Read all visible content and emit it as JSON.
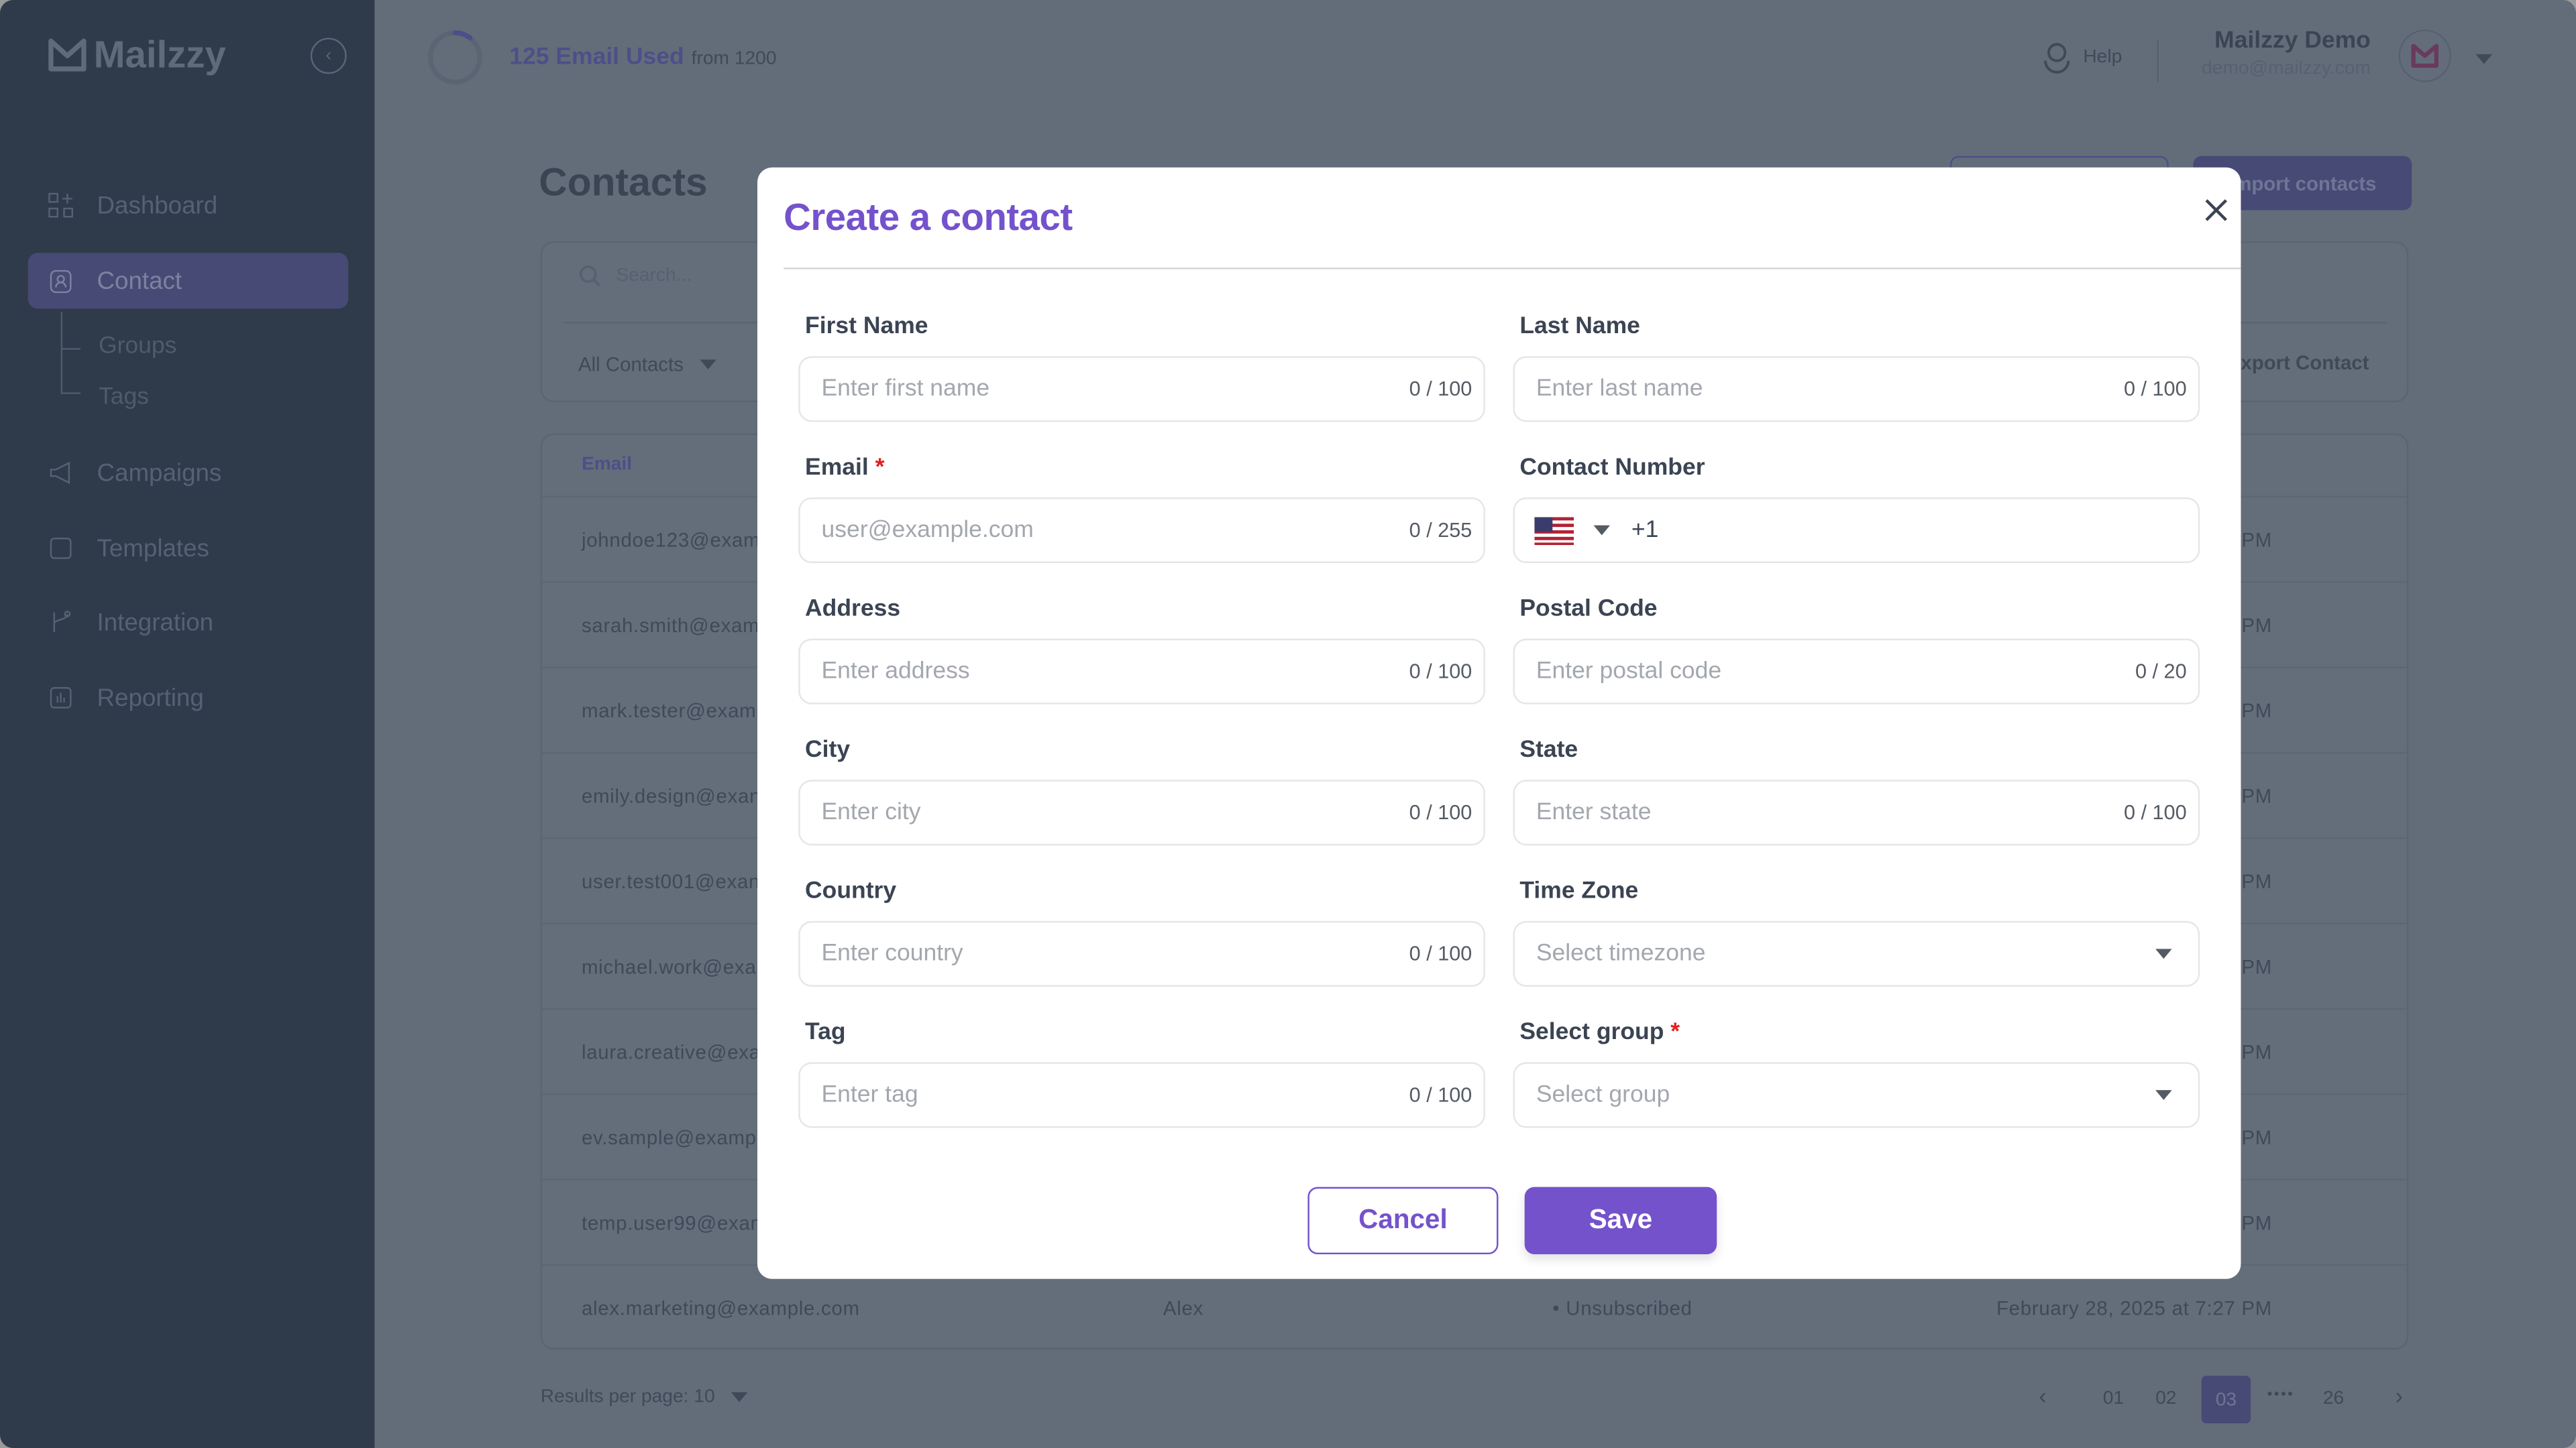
{
  "app": {
    "logo_text": "Mailzzy"
  },
  "colors": {
    "accent": "#7452cc",
    "sidebar": "#2f3a4a",
    "overlay": "#636d7a",
    "required": "#e01f1f"
  },
  "sidebar": {
    "items": [
      {
        "label": "Dashboard",
        "icon": "grid-plus-icon"
      },
      {
        "label": "Contact",
        "icon": "contact-badge-icon",
        "active": true
      },
      {
        "label": "Campaigns",
        "icon": "megaphone-icon"
      },
      {
        "label": "Templates",
        "icon": "template-icon"
      },
      {
        "label": "Integration",
        "icon": "branch-icon"
      },
      {
        "label": "Reporting",
        "icon": "bar-chart-icon"
      }
    ],
    "subitems": [
      "Groups",
      "Tags"
    ]
  },
  "header": {
    "usage_main": "125 Email Used",
    "usage_sub": "from 1200",
    "usage_used": 125,
    "usage_total": 1200,
    "help": "Help",
    "user_name": "Mailzzy Demo",
    "user_email": "demo@mailzzy.com"
  },
  "page": {
    "title": "Contacts",
    "import_button": "Import contacts",
    "search_placeholder": "Search...",
    "filter": "All Contacts",
    "export": "Export Contact",
    "table": {
      "header_email": "Email",
      "rows": [
        "johndoe123@exam",
        "sarah.smith@exam",
        "mark.tester@examp",
        "emily.design@exan",
        "user.test001@exan",
        "michael.work@exar",
        "laura.creative@exa",
        "ev.sample@exampl",
        "temp.user99@exan"
      ],
      "row_suffix": "PM",
      "last_row": {
        "email": "alex.marketing@example.com",
        "name": "Alex",
        "status": "Unsubscribed",
        "date": "February 28, 2025 at 7:27 PM"
      }
    },
    "results_per_page": "Results per page: 10",
    "pagination": {
      "pages": [
        "01",
        "02",
        "03",
        "26"
      ],
      "current": "03",
      "ellipsis": "••••"
    }
  },
  "modal": {
    "title": "Create a contact",
    "cancel": "Cancel",
    "save": "Save",
    "fields": [
      {
        "label": "First Name",
        "placeholder": "Enter first name",
        "counter": "0 / 100"
      },
      {
        "label": "Last Name",
        "placeholder": "Enter last name",
        "counter": "0 / 100"
      },
      {
        "label": "Email",
        "required": true,
        "placeholder": "user@example.com",
        "counter": "0 / 255"
      },
      {
        "label": "Contact Number",
        "dial_code": "+1",
        "country": "us-flag-icon"
      },
      {
        "label": "Address",
        "placeholder": "Enter address",
        "counter": "0 / 100"
      },
      {
        "label": "Postal Code",
        "placeholder": "Enter postal code",
        "counter": "0 / 20"
      },
      {
        "label": "City",
        "placeholder": "Enter city",
        "counter": "0 / 100"
      },
      {
        "label": "State",
        "placeholder": "Enter state",
        "counter": "0 / 100"
      },
      {
        "label": "Country",
        "placeholder": "Enter country",
        "counter": "0 / 100"
      },
      {
        "label": "Time Zone",
        "placeholder": "Select timezone",
        "select": true
      },
      {
        "label": "Tag",
        "placeholder": "Enter tag",
        "counter": "0 / 100"
      },
      {
        "label": "Select group",
        "required": true,
        "placeholder": "Select group",
        "select": true
      }
    ]
  }
}
